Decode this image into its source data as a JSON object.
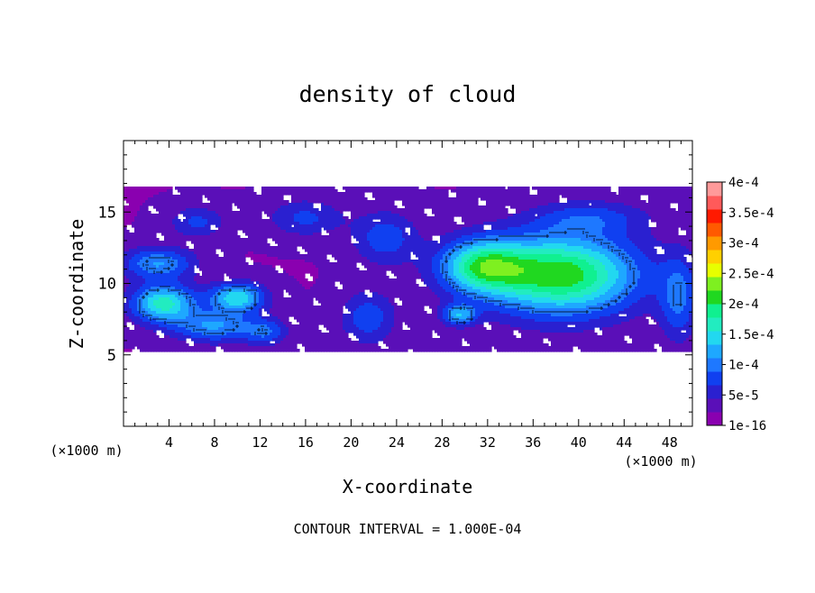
{
  "chart_data": {
    "type": "heatmap",
    "title": "density of cloud",
    "xlabel": "X-coordinate",
    "ylabel": "Z-coordinate",
    "x_unit": "(×1000 m)",
    "y_unit": "(×1000 m)",
    "footer": "CONTOUR INTERVAL = 1.000E-04",
    "xlim": [
      0,
      50
    ],
    "ylim": [
      0,
      20
    ],
    "x_ticks": [
      4,
      8,
      12,
      16,
      20,
      24,
      28,
      32,
      36,
      40,
      44,
      48
    ],
    "y_ticks": [
      5,
      10,
      15
    ],
    "colorbar": {
      "labels": [
        "4e-4",
        "3.5e-4",
        "3e-4",
        "2.5e-4",
        "2e-4",
        "1.5e-4",
        "1e-4",
        "5e-5",
        "1e-16"
      ],
      "levels": [
        1e-16,
        5e-05,
        0.0001,
        0.00015,
        0.0002,
        0.00025,
        0.0003,
        0.00035,
        0.0004
      ],
      "colors": [
        "#8a00b0",
        "#5a0fb8",
        "#2a20d0",
        "#1040f0",
        "#1e78ff",
        "#1ea8ff",
        "#22d8f0",
        "#22ecc0",
        "#10f090",
        "#20d820",
        "#7ef020",
        "#e8ff00",
        "#ffd000",
        "#ff9a00",
        "#ff5a00",
        "#ff1a00",
        "#ff5a5a",
        "#ff9a9a"
      ]
    },
    "field": {
      "cloud_base_z": 5.2,
      "cloud_top_z": 16.8,
      "blobs": [
        {
          "x": 38.5,
          "z": 10.6,
          "sx": 7.2,
          "sz": 3.0,
          "peak": 0.000195
        },
        {
          "x": 31.5,
          "z": 11.2,
          "sx": 4.0,
          "sz": 2.0,
          "peak": 0.000145
        },
        {
          "x": 3.5,
          "z": 8.6,
          "sx": 3.0,
          "sz": 1.4,
          "peak": 0.000145
        },
        {
          "x": 10.0,
          "z": 9.0,
          "sx": 2.6,
          "sz": 1.1,
          "peak": 0.00013
        },
        {
          "x": 3.0,
          "z": 11.4,
          "sx": 3.4,
          "sz": 1.2,
          "peak": 9e-05
        },
        {
          "x": 8.0,
          "z": 7.0,
          "sx": 4.0,
          "sz": 1.2,
          "peak": 9e-05
        },
        {
          "x": 21.5,
          "z": 7.6,
          "sx": 2.6,
          "sz": 2.0,
          "peak": 6e-05
        },
        {
          "x": 23.0,
          "z": 13.2,
          "sx": 3.0,
          "sz": 2.0,
          "peak": 6e-05
        },
        {
          "x": 16.0,
          "z": 14.6,
          "sx": 3.5,
          "sz": 1.4,
          "peak": 5e-05
        },
        {
          "x": 6.5,
          "z": 14.3,
          "sx": 2.6,
          "sz": 1.2,
          "peak": 5e-05
        },
        {
          "x": 48.8,
          "z": 9.0,
          "sx": 1.8,
          "sz": 3.2,
          "peak": 7e-05
        },
        {
          "x": 41.0,
          "z": 14.6,
          "sx": 5.5,
          "sz": 1.3,
          "peak": 5e-05
        },
        {
          "x": 12.5,
          "z": 6.6,
          "sx": 2.0,
          "sz": 1.0,
          "peak": 6e-05
        },
        {
          "x": 29.5,
          "z": 7.8,
          "sx": 1.6,
          "sz": 0.8,
          "peak": 0.0001
        }
      ]
    }
  }
}
